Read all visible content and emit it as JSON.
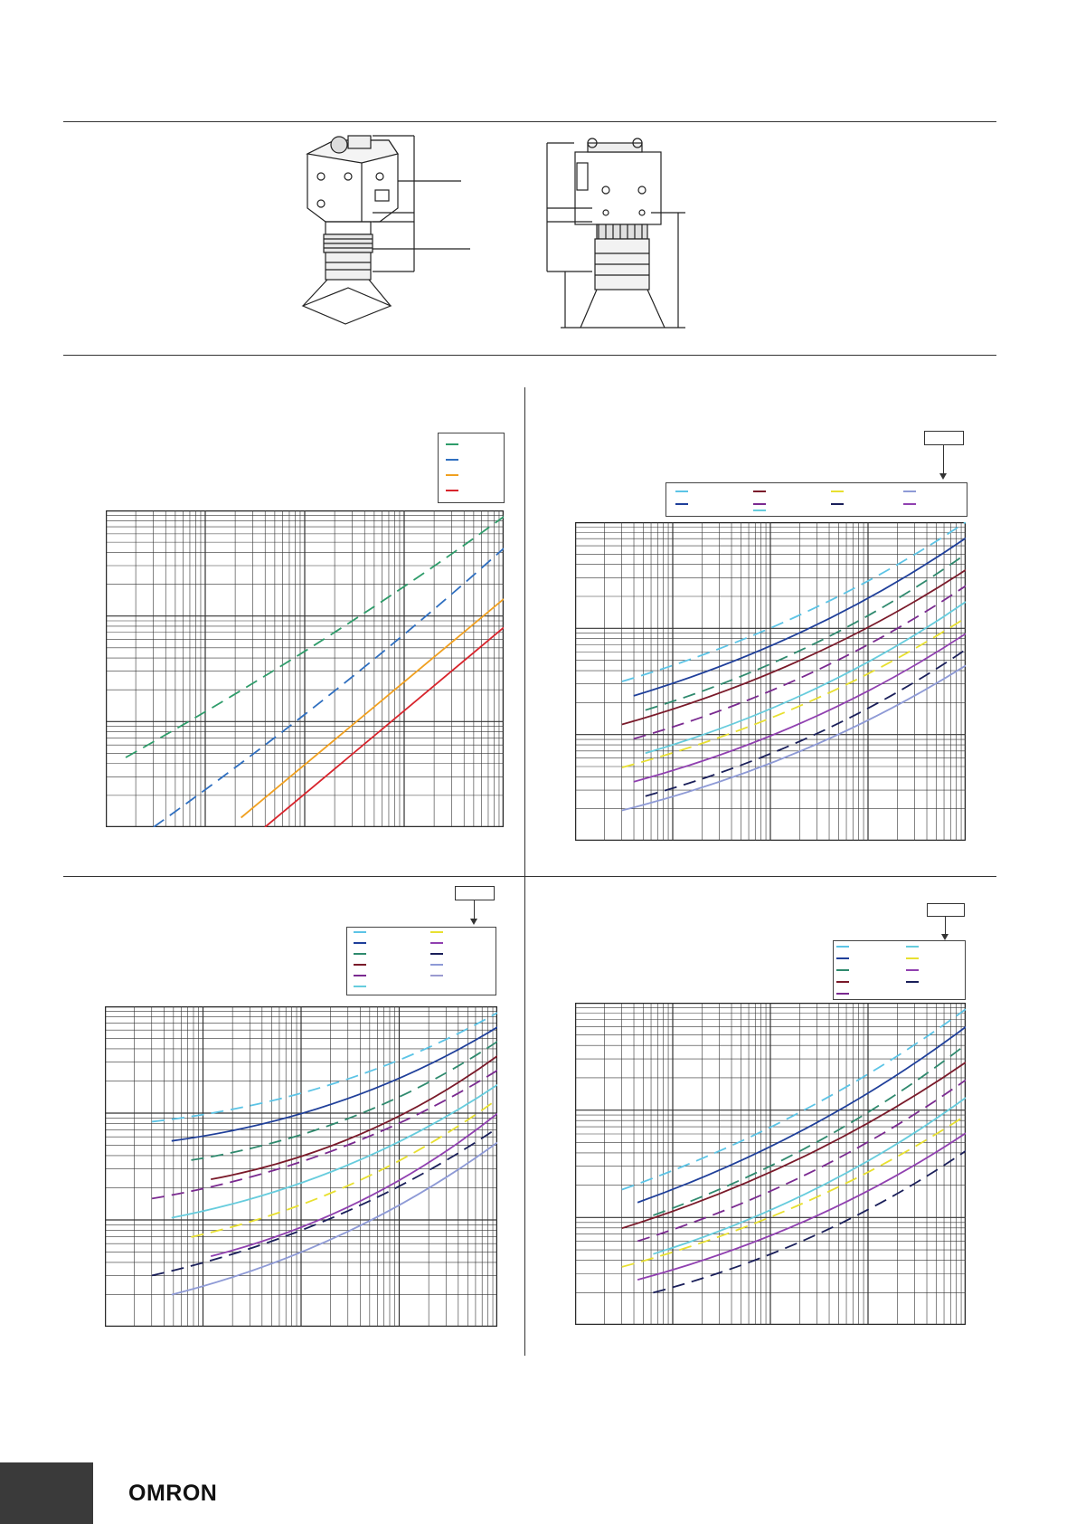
{
  "footer": {
    "brand": "OMRON"
  },
  "colors": {
    "green": "#2e9c6a",
    "blue": "#2f6fc0",
    "orange": "#f0a020",
    "red": "#d8242c",
    "light_blue": "#5cc4e6",
    "navy": "#1f3f9a",
    "teal": "#2f8a6e",
    "maroon": "#7a1a2a",
    "purple": "#7a2a90",
    "cyan": "#66ccdd",
    "yellow": "#e8e030",
    "violet": "#9040b0",
    "dark_navy": "#1a1f5a",
    "lavender": "#8e9ad6"
  },
  "charts": [
    {
      "id": "chart-top-left",
      "curves": [
        "green",
        "blue",
        "orange",
        "red"
      ]
    },
    {
      "id": "chart-top-right",
      "curves": [
        "light_blue",
        "navy",
        "teal",
        "maroon",
        "purple",
        "cyan",
        "yellow",
        "violet",
        "dark_navy",
        "lavender"
      ]
    },
    {
      "id": "chart-bottom-left",
      "curves": [
        "light_blue",
        "navy",
        "teal",
        "maroon",
        "purple",
        "cyan",
        "yellow",
        "violet",
        "dark_navy",
        "lavender"
      ]
    },
    {
      "id": "chart-bottom-right",
      "curves": [
        "light_blue",
        "navy",
        "teal",
        "maroon",
        "purple",
        "cyan",
        "yellow",
        "violet",
        "dark_navy"
      ]
    }
  ]
}
